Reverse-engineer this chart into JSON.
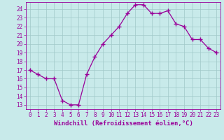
{
  "x": [
    0,
    1,
    2,
    3,
    4,
    5,
    6,
    7,
    8,
    9,
    10,
    11,
    12,
    13,
    14,
    15,
    16,
    17,
    18,
    19,
    20,
    21,
    22,
    23
  ],
  "y": [
    17.0,
    16.5,
    16.0,
    16.0,
    13.5,
    13.0,
    13.0,
    16.5,
    18.5,
    20.0,
    21.0,
    22.0,
    23.5,
    24.5,
    24.5,
    23.5,
    23.5,
    23.8,
    22.3,
    22.0,
    20.5,
    20.5,
    19.5,
    19.0
  ],
  "line_color": "#990099",
  "marker": "+",
  "marker_size": 4,
  "marker_lw": 1.0,
  "bg_color": "#c8eaea",
  "grid_color": "#a0c8c8",
  "xlabel": "Windchill (Refroidissement éolien,°C)",
  "xlim": [
    -0.5,
    23.5
  ],
  "ylim": [
    12.5,
    24.8
  ],
  "yticks": [
    13,
    14,
    15,
    16,
    17,
    18,
    19,
    20,
    21,
    22,
    23,
    24
  ],
  "xticks": [
    0,
    1,
    2,
    3,
    4,
    5,
    6,
    7,
    8,
    9,
    10,
    11,
    12,
    13,
    14,
    15,
    16,
    17,
    18,
    19,
    20,
    21,
    22,
    23
  ],
  "tick_color": "#990099",
  "label_color": "#990099",
  "xlabel_fontsize": 6.5,
  "tick_fontsize": 5.5,
  "linewidth": 0.9
}
